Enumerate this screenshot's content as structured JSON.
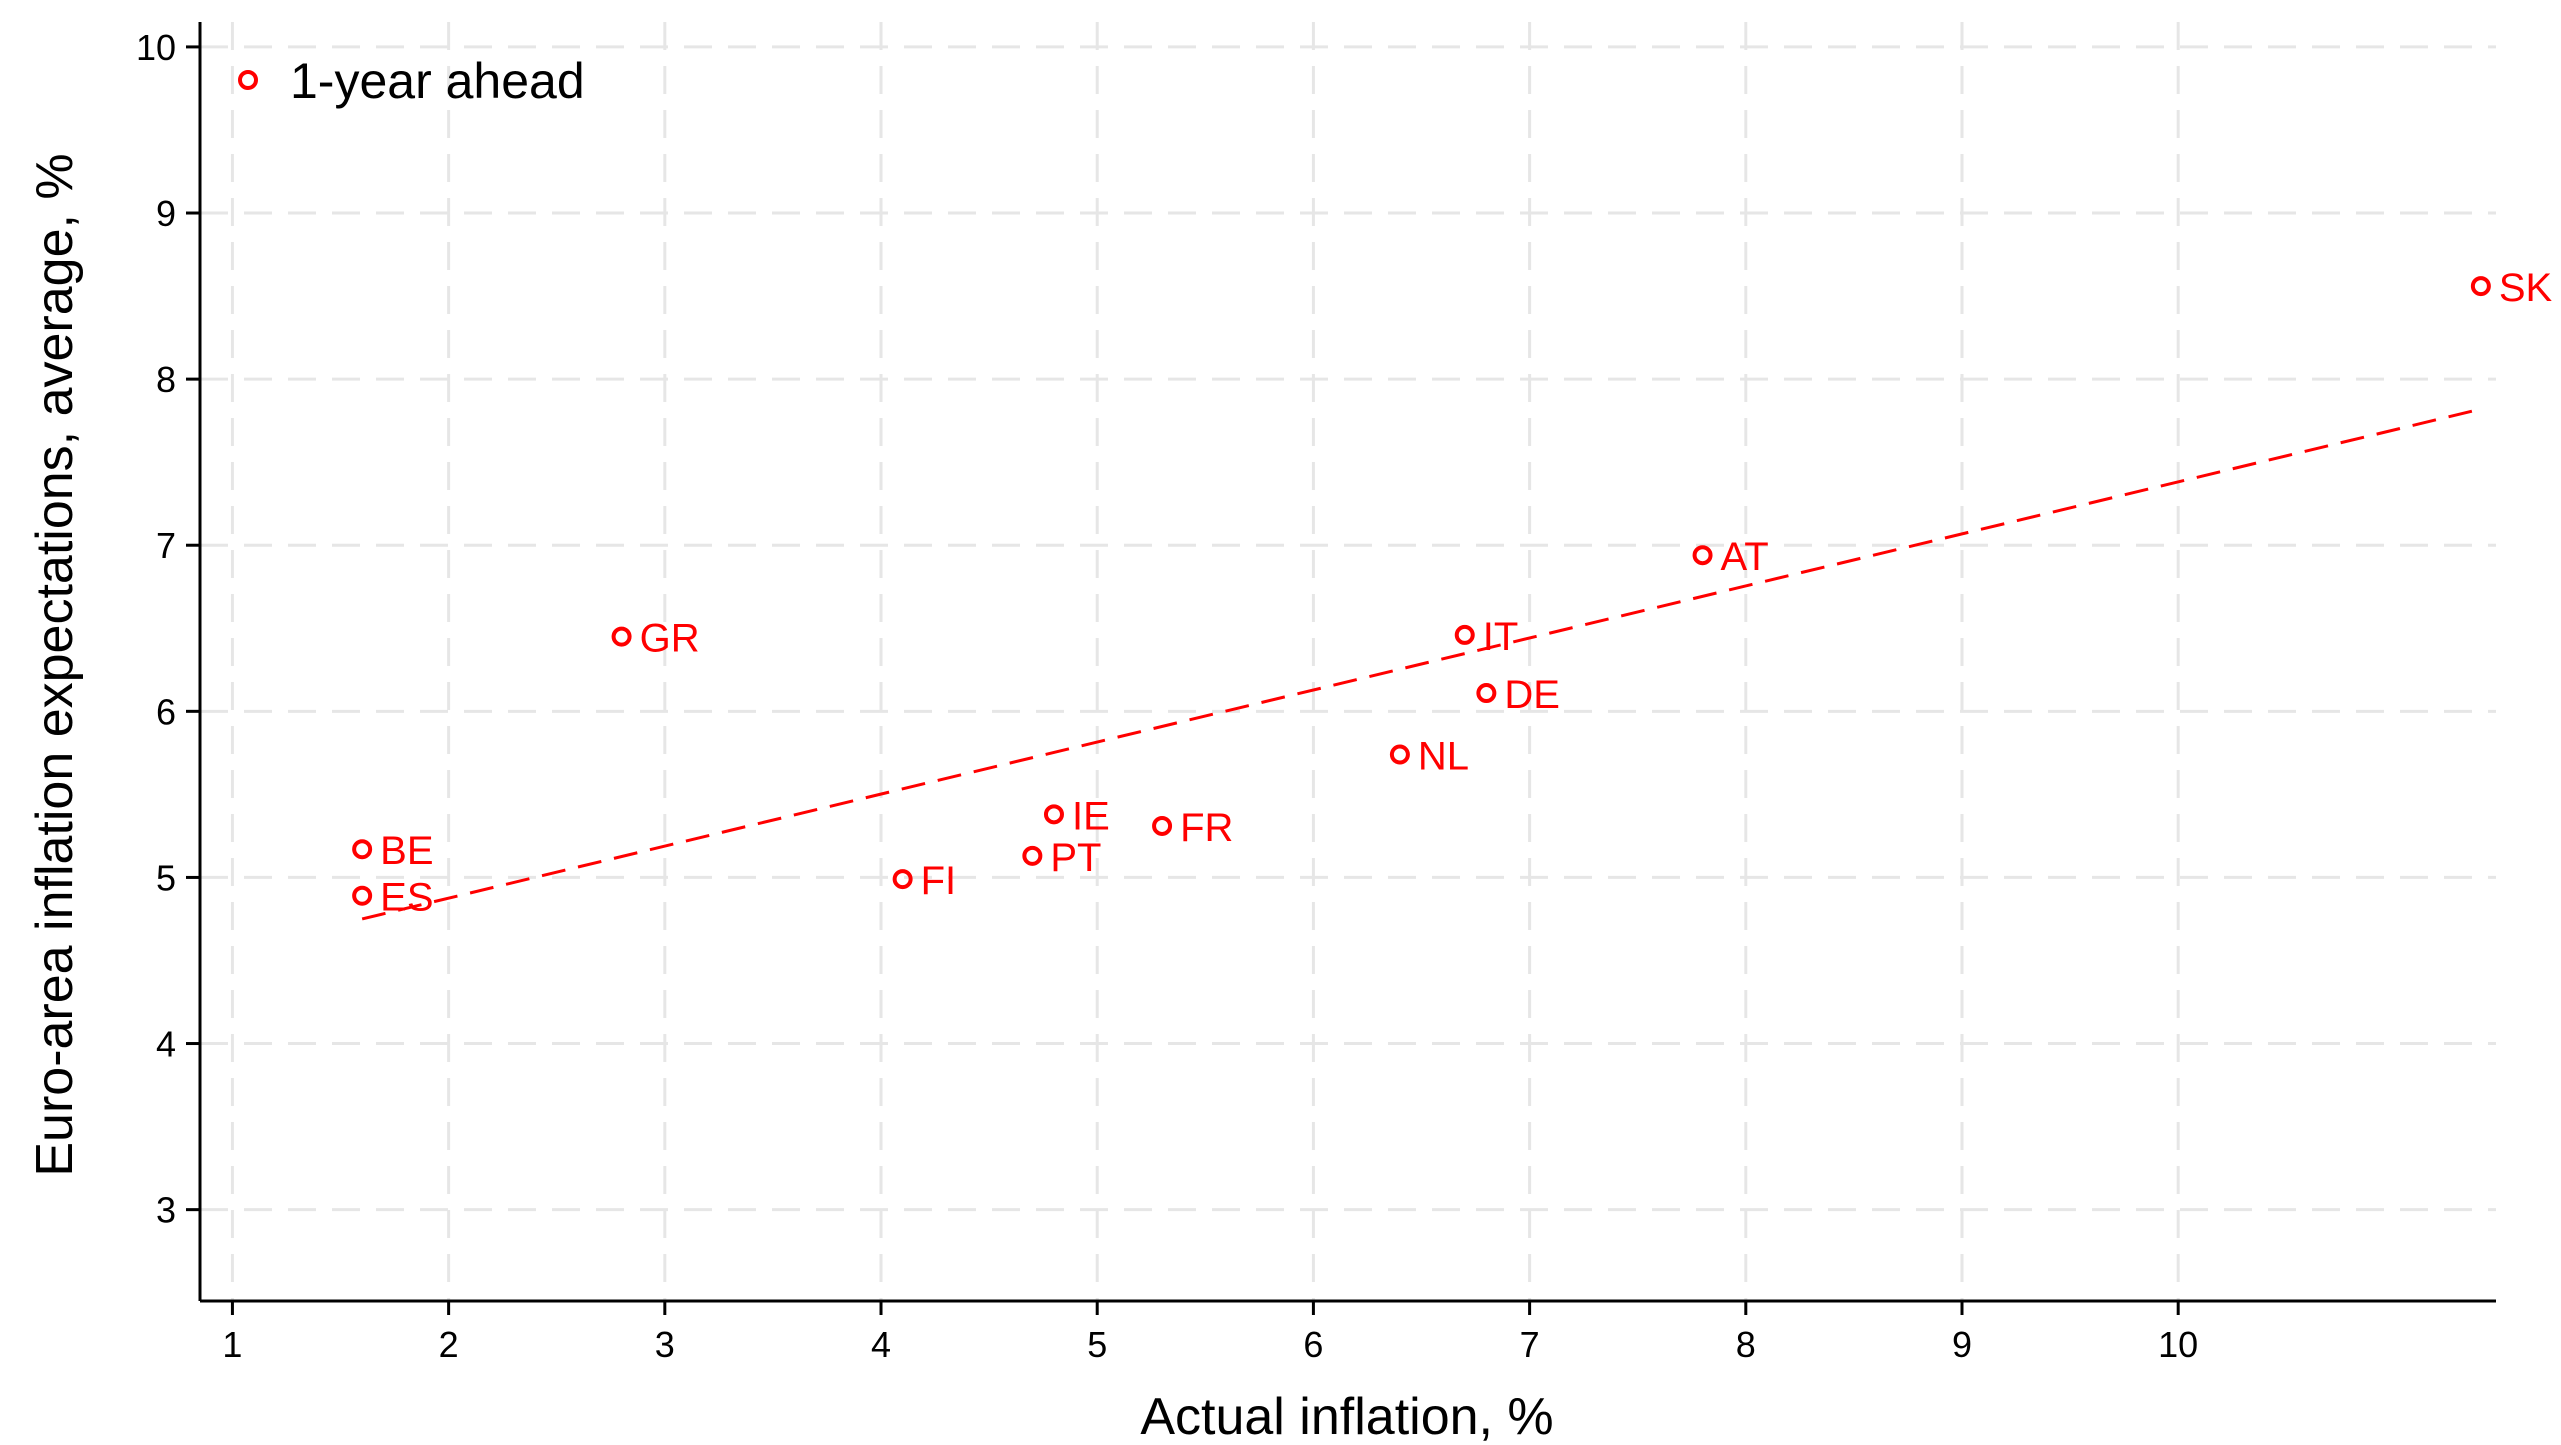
{
  "chart_data": {
    "type": "scatter",
    "xlabel": "Actual inflation, %",
    "ylabel": "Euro-area inflation expectations, average, %",
    "xlim": [
      0.85,
      11.47
    ],
    "ylim": [
      2.45,
      10.15
    ],
    "xticks": [
      1,
      2,
      3,
      4,
      5,
      6,
      7,
      8,
      9,
      10
    ],
    "yticks": [
      3,
      4,
      5,
      6,
      7,
      8,
      9,
      10
    ],
    "grid": true,
    "legend_position": "top-left",
    "series": [
      {
        "name": "1-year ahead",
        "color": "#ff0000",
        "marker": "hollow-circle",
        "points": [
          {
            "label": "BE",
            "x": 1.6,
            "y": 5.17
          },
          {
            "label": "ES",
            "x": 1.6,
            "y": 4.89
          },
          {
            "label": "GR",
            "x": 2.8,
            "y": 6.45
          },
          {
            "label": "FI",
            "x": 4.1,
            "y": 4.99
          },
          {
            "label": "PT",
            "x": 4.7,
            "y": 5.13
          },
          {
            "label": "IE",
            "x": 4.8,
            "y": 5.38
          },
          {
            "label": "FR",
            "x": 5.3,
            "y": 5.31
          },
          {
            "label": "NL",
            "x": 6.4,
            "y": 5.74
          },
          {
            "label": "IT",
            "x": 6.7,
            "y": 6.46
          },
          {
            "label": "DE",
            "x": 6.8,
            "y": 6.11
          },
          {
            "label": "AT",
            "x": 7.8,
            "y": 6.94
          },
          {
            "label": "SK",
            "x": 11.4,
            "y": 8.56
          }
        ]
      }
    ],
    "fit_line": {
      "style": "dashed",
      "color": "#ff0000",
      "x": [
        1.6,
        11.4
      ],
      "y": [
        4.75,
        7.82
      ]
    }
  }
}
